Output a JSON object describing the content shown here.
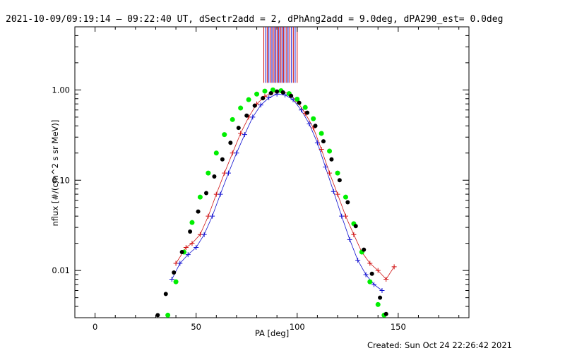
{
  "title": "2021-10-09/09:19:14 – 09:22:40 UT, dSectr2add = 2, dPhAng2add = 9.0deg, dPA290_est=  0.0deg",
  "footer": "Created: Sun Oct 24 22:26:42 2021",
  "chart_data": {
    "type": "line",
    "title": "2021-10-09/09:19:14 – 09:22:40 UT, dSectr2add = 2, dPhAng2add = 9.0deg, dPA290_est=  0.0deg",
    "xlabel": "PA [deg]",
    "ylabel": "nflux [#/(cm^2 s sr MeV)]",
    "xlim": [
      -10,
      185
    ],
    "ylim": [
      0.003,
      5.0
    ],
    "yscale": "log",
    "grid": false,
    "x_ticks": [
      0,
      50,
      100,
      150
    ],
    "x_tick_labels": [
      "0",
      "50",
      "100",
      "150"
    ],
    "y_ticks": [
      0.01,
      0.1,
      1.0
    ],
    "y_tick_labels": [
      "0.01",
      "0.10",
      "1.00"
    ],
    "colors": {
      "red": "#d01010",
      "blue": "#1010d0",
      "green": "#00ee00",
      "black": "#000000"
    },
    "series": [
      {
        "color": "#d01010",
        "marker": "plus",
        "x": [
          40,
          45,
          48,
          52,
          56,
          60,
          64,
          68,
          72,
          76,
          80,
          84,
          88,
          92,
          96,
          100,
          104,
          108,
          112,
          116,
          120,
          124,
          128,
          132,
          136,
          140,
          144,
          148
        ],
        "y": [
          0.012,
          0.018,
          0.02,
          0.025,
          0.04,
          0.07,
          0.12,
          0.2,
          0.33,
          0.5,
          0.7,
          0.85,
          0.95,
          0.98,
          0.9,
          0.75,
          0.55,
          0.38,
          0.22,
          0.12,
          0.07,
          0.04,
          0.025,
          0.016,
          0.012,
          0.01,
          0.008,
          0.011
        ]
      },
      {
        "color": "#1010d0",
        "marker": "plus",
        "x": [
          38,
          42,
          46,
          50,
          54,
          58,
          62,
          66,
          70,
          74,
          78,
          82,
          86,
          90,
          94,
          98,
          102,
          106,
          110,
          114,
          118,
          122,
          126,
          130,
          134,
          138,
          142
        ],
        "y": [
          0.008,
          0.012,
          0.015,
          0.018,
          0.025,
          0.04,
          0.07,
          0.12,
          0.2,
          0.32,
          0.5,
          0.68,
          0.82,
          0.9,
          0.88,
          0.78,
          0.6,
          0.42,
          0.26,
          0.14,
          0.075,
          0.04,
          0.022,
          0.013,
          0.009,
          0.007,
          0.006
        ]
      },
      {
        "name": "",
        "color": "#00ee00",
        "marker": "dot",
        "x": [
          36,
          40,
          44,
          48,
          52,
          56,
          60,
          64,
          68,
          72,
          76,
          80,
          84,
          88,
          92,
          96,
          100,
          104,
          108,
          112,
          116,
          120,
          124,
          128,
          132,
          136,
          140,
          143
        ],
        "y": [
          0.0032,
          0.0075,
          0.016,
          0.034,
          0.065,
          0.12,
          0.2,
          0.32,
          0.47,
          0.63,
          0.78,
          0.9,
          0.97,
          1.0,
          0.98,
          0.91,
          0.79,
          0.64,
          0.48,
          0.33,
          0.21,
          0.12,
          0.065,
          0.033,
          0.016,
          0.0075,
          0.0042,
          0.0032
        ]
      },
      {
        "name": "",
        "color": "#000000",
        "marker": "dot",
        "x": [
          31,
          35,
          39,
          43,
          47,
          51,
          55,
          59,
          63,
          67,
          71,
          75,
          79,
          83,
          87,
          90,
          93,
          97,
          101,
          105,
          109,
          113,
          117,
          121,
          125,
          129,
          133,
          137,
          141,
          144
        ],
        "y": [
          0.0032,
          0.0055,
          0.0095,
          0.016,
          0.027,
          0.045,
          0.072,
          0.11,
          0.17,
          0.26,
          0.38,
          0.52,
          0.67,
          0.81,
          0.92,
          0.96,
          0.94,
          0.86,
          0.72,
          0.56,
          0.4,
          0.27,
          0.17,
          0.1,
          0.057,
          0.031,
          0.017,
          0.0092,
          0.005,
          0.0033
        ]
      }
    ],
    "vertical_lines": {
      "colors": [
        "#d01010",
        "#1010d0"
      ],
      "y_range": [
        1.2,
        5.0
      ],
      "x": [
        83.5,
        84.5,
        85.2,
        86,
        86.8,
        87.5,
        88.2,
        88.9,
        89.5,
        90.1,
        90.8,
        91.4,
        92,
        92.7,
        93.3,
        94,
        94.8,
        95.5,
        96.3,
        97.2,
        98.1,
        99,
        100
      ]
    }
  }
}
